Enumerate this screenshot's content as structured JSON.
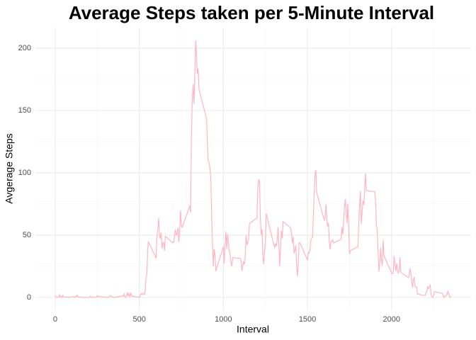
{
  "chart_data": {
    "type": "line",
    "title": "Average Steps taken per 5-Minute Interval",
    "x_label": "Interval",
    "y_label": "Avgerage Steps",
    "color": "#ffb6c1",
    "grid": true,
    "xlim": [
      -117.75,
      2472.75
    ],
    "ylim": [
      -10.3,
      216.5
    ],
    "xticks": [
      0,
      500,
      1000,
      1500,
      2000
    ],
    "yticks": [
      0,
      50,
      100,
      150,
      200
    ],
    "x": [
      0,
      5,
      10,
      15,
      20,
      25,
      30,
      35,
      40,
      45,
      50,
      55,
      100,
      105,
      110,
      115,
      120,
      125,
      130,
      135,
      140,
      145,
      150,
      155,
      200,
      205,
      210,
      215,
      220,
      225,
      230,
      235,
      240,
      245,
      250,
      255,
      300,
      305,
      310,
      315,
      320,
      325,
      330,
      335,
      340,
      345,
      350,
      355,
      400,
      405,
      410,
      415,
      420,
      425,
      430,
      435,
      440,
      445,
      450,
      455,
      500,
      505,
      510,
      515,
      520,
      525,
      530,
      535,
      540,
      545,
      550,
      555,
      600,
      605,
      610,
      615,
      620,
      625,
      630,
      635,
      640,
      645,
      650,
      655,
      700,
      705,
      710,
      715,
      720,
      725,
      730,
      735,
      740,
      745,
      750,
      755,
      800,
      805,
      810,
      815,
      820,
      825,
      830,
      835,
      840,
      845,
      850,
      855,
      900,
      905,
      910,
      915,
      920,
      925,
      930,
      935,
      940,
      945,
      950,
      955,
      1000,
      1005,
      1010,
      1015,
      1020,
      1025,
      1030,
      1035,
      1040,
      1045,
      1050,
      1055,
      1100,
      1105,
      1110,
      1115,
      1120,
      1125,
      1130,
      1135,
      1140,
      1145,
      1150,
      1155,
      1200,
      1205,
      1210,
      1215,
      1220,
      1225,
      1230,
      1235,
      1240,
      1245,
      1250,
      1255,
      1300,
      1305,
      1310,
      1315,
      1320,
      1325,
      1330,
      1335,
      1340,
      1345,
      1350,
      1355,
      1400,
      1405,
      1410,
      1415,
      1420,
      1425,
      1430,
      1435,
      1440,
      1445,
      1450,
      1455,
      1500,
      1505,
      1510,
      1515,
      1520,
      1525,
      1530,
      1535,
      1540,
      1545,
      1550,
      1555,
      1600,
      1605,
      1610,
      1615,
      1620,
      1625,
      1630,
      1635,
      1640,
      1645,
      1650,
      1655,
      1700,
      1705,
      1710,
      1715,
      1720,
      1725,
      1730,
      1735,
      1740,
      1745,
      1750,
      1755,
      1800,
      1805,
      1810,
      1815,
      1820,
      1825,
      1830,
      1835,
      1840,
      1845,
      1850,
      1855,
      1900,
      1905,
      1910,
      1915,
      1920,
      1925,
      1930,
      1935,
      1940,
      1945,
      1950,
      1955,
      2000,
      2005,
      2010,
      2015,
      2020,
      2025,
      2030,
      2035,
      2040,
      2045,
      2050,
      2055,
      2100,
      2105,
      2110,
      2115,
      2120,
      2125,
      2130,
      2135,
      2140,
      2145,
      2150,
      2155,
      2200,
      2205,
      2210,
      2215,
      2220,
      2225,
      2230,
      2235,
      2240,
      2245,
      2250,
      2255,
      2300,
      2305,
      2310,
      2315,
      2320,
      2325,
      2330,
      2335,
      2340,
      2345,
      2350,
      2355
    ],
    "values": [
      1.7,
      0.3,
      0.1,
      0.2,
      0.1,
      2.1,
      0.5,
      0.9,
      0,
      1.5,
      0.3,
      0.1,
      0.3,
      0.7,
      0.2,
      0.3,
      0,
      1.1,
      1.8,
      0.2,
      0.2,
      0.4,
      0.3,
      0,
      0,
      0,
      1.1,
      0,
      0,
      0.1,
      0,
      0.2,
      0,
      0,
      1.5,
      0.9,
      0,
      0,
      0,
      0,
      0.2,
      0.6,
      1.6,
      0.6,
      0.5,
      0.1,
      0,
      0,
      1.2,
      0.9,
      2.6,
      0,
      0.3,
      1.1,
      4.1,
      0.7,
      3.5,
      0.8,
      3.1,
      1.1,
      0,
      1.6,
      3,
      2.2,
      3.3,
      3,
      2.1,
      6.1,
      16,
      18.3,
      39.5,
      44.5,
      31.5,
      49.3,
      53.8,
      63.5,
      50,
      47.1,
      52.2,
      39.3,
      44,
      44.2,
      37.4,
      49,
      43.8,
      44.4,
      50.5,
      54.5,
      49.9,
      51,
      55.7,
      44.3,
      52.3,
      69.5,
      57.8,
      56.2,
      73.4,
      68.2,
      129.4,
      157.5,
      171.2,
      155.4,
      177.3,
      206.2,
      195.9,
      179.6,
      183.4,
      167,
      143.5,
      124,
      109.1,
      108.1,
      103.7,
      96,
      66.2,
      45.2,
      24.8,
      38.8,
      35,
      21.1,
      40.6,
      27,
      42.4,
      52.7,
      38.9,
      50.8,
      44.3,
      37.4,
      34.7,
      28.3,
      25.1,
      31.9,
      31.4,
      29.7,
      21.3,
      25.5,
      28.4,
      26.5,
      33.4,
      50,
      42,
      44.6,
      46,
      59.2,
      63.9,
      87.7,
      94.8,
      92.8,
      63.4,
      50.2,
      54.5,
      32.4,
      26.5,
      37.7,
      45.1,
      67.3,
      42.3,
      39.9,
      43.3,
      41,
      46.2,
      56.4,
      42.8,
      25.1,
      40,
      53.5,
      47.3,
      60.8,
      55.8,
      52,
      43.6,
      48.7,
      35.5,
      37.5,
      41.8,
      27.5,
      17.1,
      26.1,
      43.6,
      43.8,
      30,
      36.1,
      35.5,
      38.8,
      46,
      47.8,
      48.1,
      65.3,
      82.9,
      98.7,
      102.1,
      84,
      62.1,
      64.1,
      74.5,
      63.2,
      56.9,
      59.8,
      43.9,
      38.6,
      44.7,
      45.5,
      46.2,
      43.7,
      46.6,
      56.3,
      50.7,
      61.2,
      72.7,
      78.9,
      68.9,
      59.7,
      75.1,
      56.5,
      34.8,
      37.5,
      40.7,
      58,
      74.7,
      85.3,
      59.3,
      67.8,
      77.7,
      74.2,
      85.3,
      99.5,
      86.6,
      85.6,
      84.9,
      77.8,
      58,
      53.4,
      36.3,
      20.7,
      27.4,
      40,
      30.2,
      25.5,
      45.7,
      33.5,
      19.6,
      19,
      19.3,
      33.3,
      26.8,
      21.2,
      27.3,
      21.3,
      19.5,
      21.3,
      32.3,
      20.2,
      15.9,
      17.2,
      23.5,
      19.2,
      12.5,
      8,
      14.7,
      16.3,
      8.7,
      7.8,
      8.1,
      2.6,
      1.5,
      3.7,
      4.8,
      8.5,
      7.1,
      8.7,
      9.8,
      2.2,
      0.3,
      0.1,
      1.6,
      4.6,
      3.3,
      2.8,
      0,
      0.8,
      1,
      1.6,
      2.6,
      4.7,
      3.3,
      0.6,
      0.2,
      1.1
    ]
  }
}
